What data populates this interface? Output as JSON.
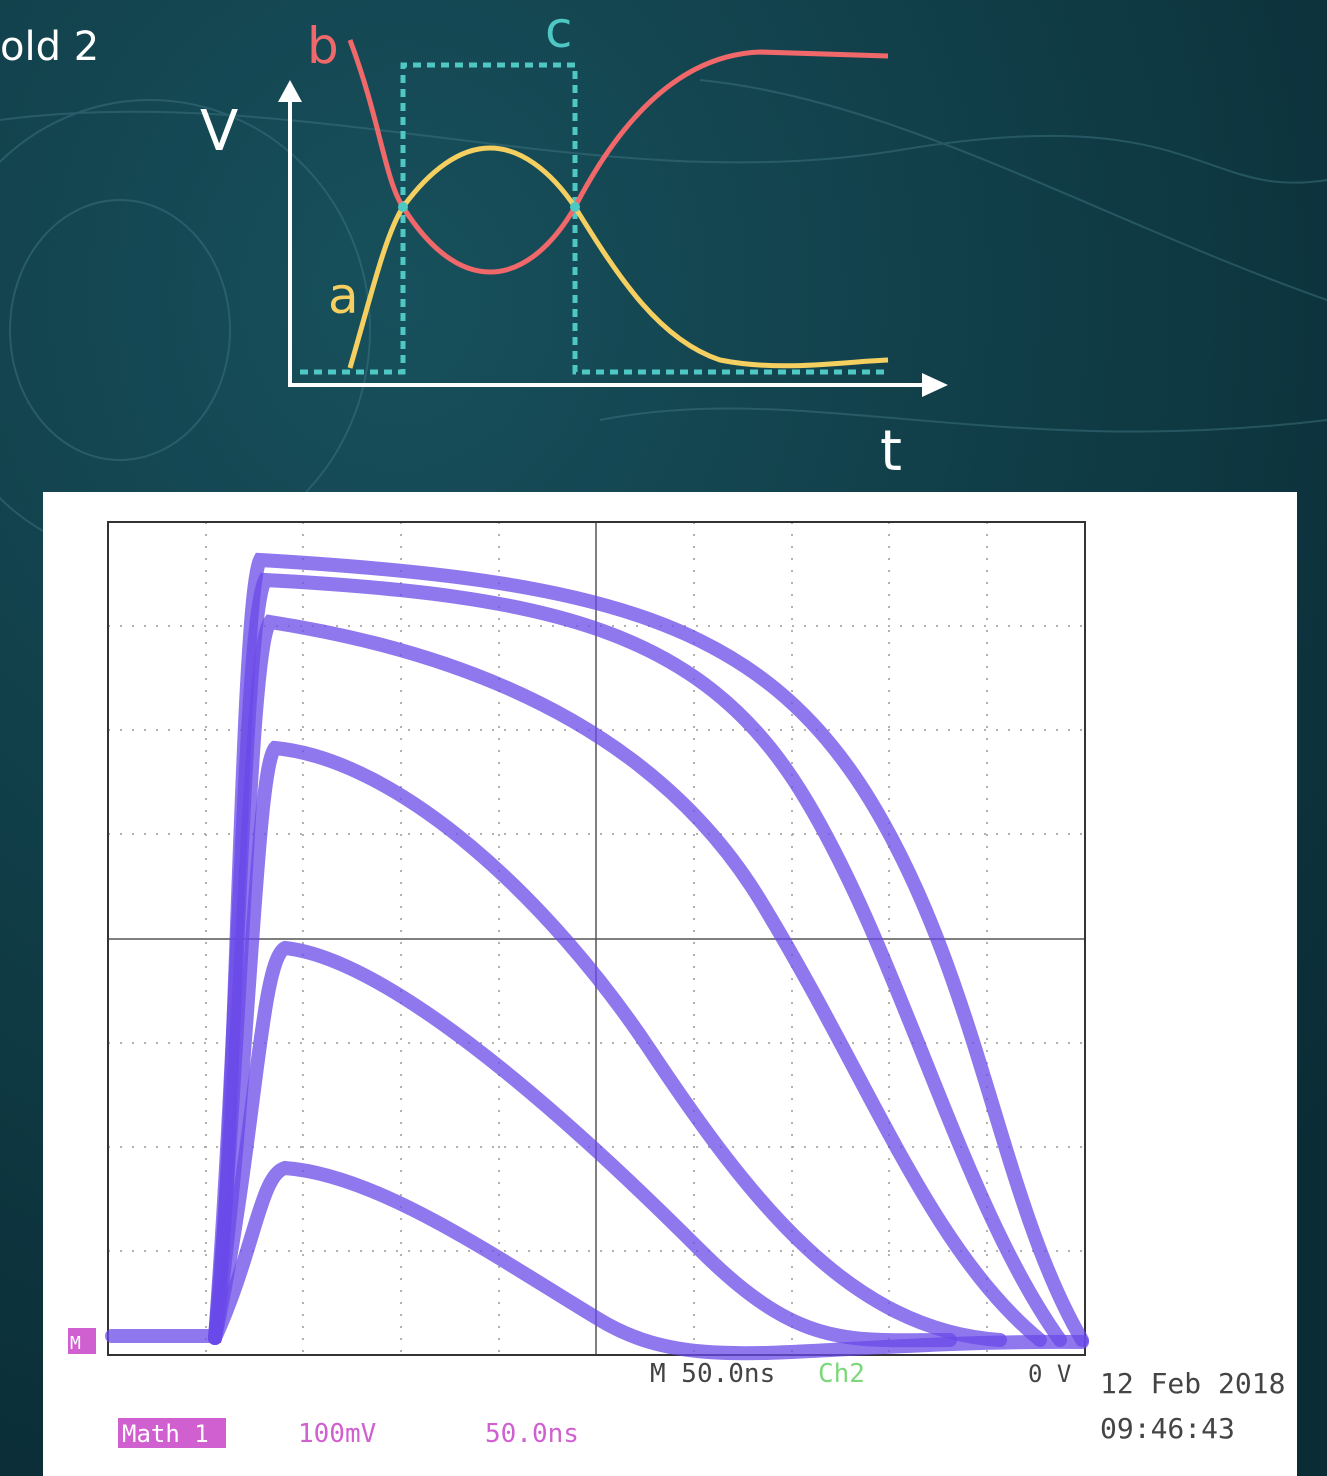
{
  "slide_text": "old 2",
  "diagram": {
    "y_axis_label": "V",
    "x_axis_label": "t",
    "labels": {
      "a": "a",
      "b": "b",
      "c": "c"
    }
  },
  "scope": {
    "timebase": "M 50.0ns",
    "channel": "Ch2",
    "trigger_level": "0 V",
    "date": "12 Feb 2018",
    "time": "09:46:43",
    "math_label": "Math 1",
    "volts_per_div": "100mV",
    "time_per_div": "50.0ns",
    "marker": "M"
  }
}
